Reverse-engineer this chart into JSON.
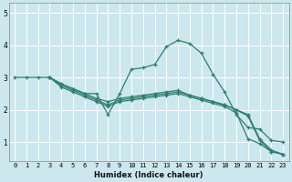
{
  "xlabel": "Humidex (Indice chaleur)",
  "bg_color": "#cce8ee",
  "grid_color": "#ffffff",
  "line_color": "#2e7d6e",
  "xlim": [
    -0.5,
    23.5
  ],
  "ylim": [
    0.4,
    5.3
  ],
  "xticks": [
    0,
    1,
    2,
    3,
    4,
    5,
    6,
    7,
    8,
    9,
    10,
    11,
    12,
    13,
    14,
    15,
    16,
    17,
    18,
    19,
    20,
    21,
    22,
    23
  ],
  "yticks": [
    1,
    2,
    3,
    4,
    5
  ],
  "series": [
    {
      "x": [
        0,
        1,
        2,
        3,
        4,
        5,
        6,
        7,
        8,
        9,
        10,
        11,
        12,
        13,
        14,
        15,
        16,
        17,
        18,
        19,
        20,
        21,
        22,
        23
      ],
      "y": [
        3.0,
        3.0,
        3.0,
        3.0,
        2.8,
        2.65,
        2.5,
        2.5,
        1.85,
        2.5,
        3.25,
        3.3,
        3.4,
        3.95,
        4.15,
        4.05,
        3.75,
        3.1,
        2.55,
        1.85,
        1.45,
        1.4,
        1.05,
        1.0
      ]
    },
    {
      "x": [
        3,
        4,
        5,
        6,
        7,
        8,
        9,
        10,
        11,
        12,
        13,
        14,
        15,
        16,
        17,
        18,
        19,
        20,
        21,
        22,
        23
      ],
      "y": [
        3.0,
        2.8,
        2.65,
        2.5,
        2.35,
        2.25,
        2.35,
        2.4,
        2.45,
        2.5,
        2.55,
        2.6,
        2.45,
        2.35,
        2.25,
        2.15,
        2.0,
        1.85,
        1.1,
        0.75,
        0.62
      ]
    },
    {
      "x": [
        3,
        4,
        5,
        6,
        7,
        8,
        9,
        10,
        11,
        12,
        13,
        14,
        15,
        16,
        17,
        18,
        19,
        20,
        21,
        22,
        23
      ],
      "y": [
        3.0,
        2.75,
        2.6,
        2.45,
        2.3,
        2.15,
        2.3,
        2.35,
        2.4,
        2.45,
        2.5,
        2.55,
        2.45,
        2.35,
        2.25,
        2.15,
        2.0,
        1.8,
        1.05,
        0.7,
        0.62
      ]
    },
    {
      "x": [
        3,
        4,
        5,
        6,
        7,
        8,
        9,
        10,
        11,
        12,
        13,
        14,
        15,
        16,
        17,
        18,
        19,
        20,
        21,
        22,
        23
      ],
      "y": [
        3.0,
        2.7,
        2.55,
        2.4,
        2.25,
        2.1,
        2.25,
        2.3,
        2.35,
        2.4,
        2.45,
        2.5,
        2.4,
        2.3,
        2.2,
        2.1,
        1.9,
        1.1,
        0.95,
        0.7,
        0.62
      ]
    }
  ]
}
